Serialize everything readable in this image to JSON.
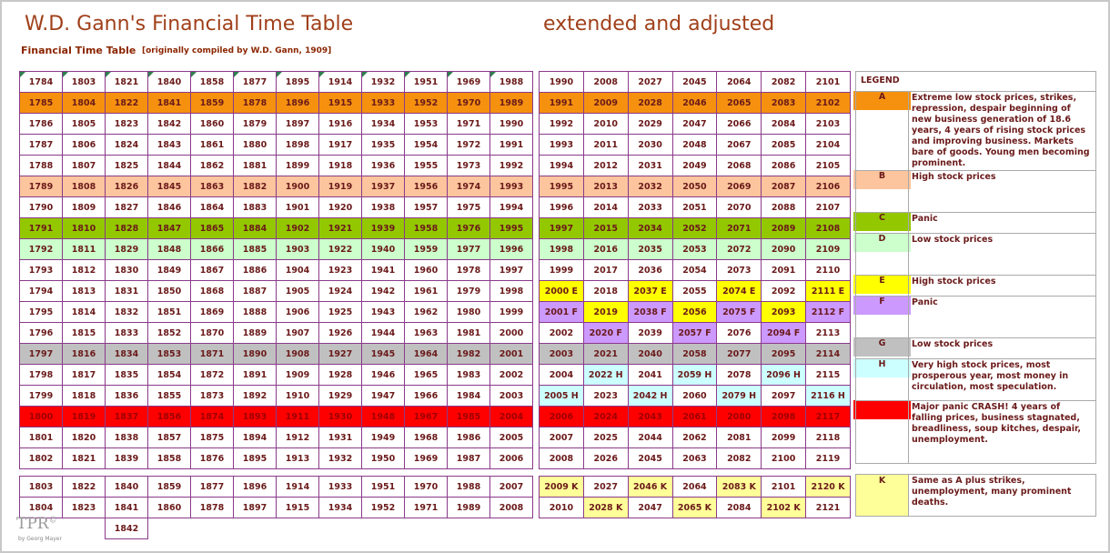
{
  "title": "W.D. Gann's Financial Time Table",
  "title_ext": "extended and adjusted",
  "subtitle": "Financial Time Table",
  "subtitle_note": "[originally compiled by W.D. Gann, 1909]",
  "colors": {
    "A": "#f5910f",
    "B": "#fcc59d",
    "C": "#93c800",
    "D": "#ccffcc",
    "E": "#ffff00",
    "F": "#cc99ff",
    "G": "#c0c0c0",
    "H": "#ccffff",
    "R": "#ff0000",
    "K": "#ffff99"
  },
  "left_table": {
    "rows": [
      {
        "cls": "",
        "cells": [
          "1784",
          "1803",
          "1821",
          "1840",
          "1858",
          "1877",
          "1895",
          "1914",
          "1932",
          "1951",
          "1969",
          "1988"
        ]
      },
      {
        "cls": "A",
        "cells": [
          "1785",
          "1804",
          "1822",
          "1841",
          "1859",
          "1878",
          "1896",
          "1915",
          "1933",
          "1952",
          "1970",
          "1989"
        ]
      },
      {
        "cls": "",
        "cells": [
          "1786",
          "1805",
          "1823",
          "1842",
          "1860",
          "1879",
          "1897",
          "1916",
          "1934",
          "1953",
          "1971",
          "1990"
        ]
      },
      {
        "cls": "",
        "cells": [
          "1787",
          "1806",
          "1824",
          "1843",
          "1861",
          "1880",
          "1898",
          "1917",
          "1935",
          "1954",
          "1972",
          "1991"
        ]
      },
      {
        "cls": "",
        "cells": [
          "1788",
          "1807",
          "1825",
          "1844",
          "1862",
          "1881",
          "1899",
          "1918",
          "1936",
          "1955",
          "1973",
          "1992"
        ]
      },
      {
        "cls": "B",
        "cells": [
          "1789",
          "1808",
          "1826",
          "1845",
          "1863",
          "1882",
          "1900",
          "1919",
          "1937",
          "1956",
          "1974",
          "1993"
        ]
      },
      {
        "cls": "",
        "cells": [
          "1790",
          "1809",
          "1827",
          "1846",
          "1864",
          "1883",
          "1901",
          "1920",
          "1938",
          "1957",
          "1975",
          "1994"
        ]
      },
      {
        "cls": "C",
        "cells": [
          "1791",
          "1810",
          "1828",
          "1847",
          "1865",
          "1884",
          "1902",
          "1921",
          "1939",
          "1958",
          "1976",
          "1995"
        ]
      },
      {
        "cls": "D",
        "cells": [
          "1792",
          "1811",
          "1829",
          "1848",
          "1866",
          "1885",
          "1903",
          "1922",
          "1940",
          "1959",
          "1977",
          "1996"
        ]
      },
      {
        "cls": "",
        "cells": [
          "1793",
          "1812",
          "1830",
          "1849",
          "1867",
          "1886",
          "1904",
          "1923",
          "1941",
          "1960",
          "1978",
          "1997"
        ]
      },
      {
        "cls": "",
        "cells": [
          "1794",
          "1813",
          "1831",
          "1850",
          "1868",
          "1887",
          "1905",
          "1924",
          "1942",
          "1961",
          "1979",
          "1998"
        ]
      },
      {
        "cls": "",
        "cells": [
          "1795",
          "1814",
          "1832",
          "1851",
          "1869",
          "1888",
          "1906",
          "1925",
          "1943",
          "1962",
          "1980",
          "1999"
        ]
      },
      {
        "cls": "",
        "cells": [
          "1796",
          "1815",
          "1833",
          "1852",
          "1870",
          "1889",
          "1907",
          "1926",
          "1944",
          "1963",
          "1981",
          "2000"
        ]
      },
      {
        "cls": "G",
        "cells": [
          "1797",
          "1816",
          "1834",
          "1853",
          "1871",
          "1890",
          "1908",
          "1927",
          "1945",
          "1964",
          "1982",
          "2001"
        ]
      },
      {
        "cls": "",
        "cells": [
          "1798",
          "1817",
          "1835",
          "1854",
          "1872",
          "1891",
          "1909",
          "1928",
          "1946",
          "1965",
          "1983",
          "2002"
        ]
      },
      {
        "cls": "",
        "cells": [
          "1799",
          "1818",
          "1836",
          "1855",
          "1873",
          "1892",
          "1910",
          "1929",
          "1947",
          "1966",
          "1984",
          "2003"
        ]
      },
      {
        "cls": "R",
        "cells": [
          "1800",
          "1819",
          "1837",
          "1856",
          "1874",
          "1893",
          "1911",
          "1930",
          "1948",
          "1967",
          "1985",
          "2004"
        ]
      },
      {
        "cls": "",
        "cells": [
          "1801",
          "1820",
          "1838",
          "1857",
          "1875",
          "1894",
          "1912",
          "1931",
          "1949",
          "1968",
          "1986",
          "2005"
        ]
      },
      {
        "cls": "",
        "cells": [
          "1802",
          "1821",
          "1839",
          "1858",
          "1876",
          "1895",
          "1913",
          "1932",
          "1950",
          "1969",
          "1987",
          "2006"
        ]
      }
    ],
    "extra_rows": [
      {
        "cls": "",
        "cells": [
          "1803",
          "1822",
          "1840",
          "1859",
          "1877",
          "1896",
          "1914",
          "1933",
          "1951",
          "1970",
          "1988",
          "2007"
        ]
      },
      {
        "cls": "",
        "cells": [
          "1804",
          "1823",
          "1841",
          "1860",
          "1878",
          "1897",
          "1915",
          "1934",
          "1952",
          "1971",
          "1989",
          "2008"
        ]
      },
      {
        "cls": "",
        "cells": [
          "",
          "",
          "1842",
          "",
          "",
          "",
          "",
          "",
          "",
          "",
          "",
          ""
        ]
      }
    ]
  },
  "right_table": {
    "rows": [
      [
        {
          "t": "1990"
        },
        {
          "t": "2008"
        },
        {
          "t": "2027"
        },
        {
          "t": "2045"
        },
        {
          "t": "2064"
        },
        {
          "t": "2082"
        },
        {
          "t": "2101"
        }
      ],
      [
        {
          "t": "1991",
          "c": "A"
        },
        {
          "t": "2009",
          "c": "A"
        },
        {
          "t": "2028",
          "c": "A"
        },
        {
          "t": "2046",
          "c": "A"
        },
        {
          "t": "2065",
          "c": "A"
        },
        {
          "t": "2083",
          "c": "A"
        },
        {
          "t": "2102",
          "c": "A"
        }
      ],
      [
        {
          "t": "1992"
        },
        {
          "t": "2010"
        },
        {
          "t": "2029"
        },
        {
          "t": "2047"
        },
        {
          "t": "2066"
        },
        {
          "t": "2084"
        },
        {
          "t": "2103"
        }
      ],
      [
        {
          "t": "1993"
        },
        {
          "t": "2011"
        },
        {
          "t": "2030"
        },
        {
          "t": "2048"
        },
        {
          "t": "2067"
        },
        {
          "t": "2085"
        },
        {
          "t": "2104"
        }
      ],
      [
        {
          "t": "1994"
        },
        {
          "t": "2012"
        },
        {
          "t": "2031"
        },
        {
          "t": "2049"
        },
        {
          "t": "2068"
        },
        {
          "t": "2086"
        },
        {
          "t": "2105"
        }
      ],
      [
        {
          "t": "1995",
          "c": "B"
        },
        {
          "t": "2013",
          "c": "B"
        },
        {
          "t": "2032",
          "c": "B"
        },
        {
          "t": "2050",
          "c": "B"
        },
        {
          "t": "2069",
          "c": "B"
        },
        {
          "t": "2087",
          "c": "B"
        },
        {
          "t": "2106",
          "c": "B"
        }
      ],
      [
        {
          "t": "1996"
        },
        {
          "t": "2014"
        },
        {
          "t": "2033"
        },
        {
          "t": "2051"
        },
        {
          "t": "2070"
        },
        {
          "t": "2088"
        },
        {
          "t": "2107"
        }
      ],
      [
        {
          "t": "1997",
          "c": "C"
        },
        {
          "t": "2015",
          "c": "C"
        },
        {
          "t": "2034",
          "c": "C"
        },
        {
          "t": "2052",
          "c": "C"
        },
        {
          "t": "2071",
          "c": "C"
        },
        {
          "t": "2089",
          "c": "C"
        },
        {
          "t": "2108",
          "c": "C"
        }
      ],
      [
        {
          "t": "1998",
          "c": "D"
        },
        {
          "t": "2016",
          "c": "D"
        },
        {
          "t": "2035",
          "c": "D"
        },
        {
          "t": "2053",
          "c": "D"
        },
        {
          "t": "2072",
          "c": "D"
        },
        {
          "t": "2090",
          "c": "D"
        },
        {
          "t": "2109",
          "c": "D"
        }
      ],
      [
        {
          "t": "1999"
        },
        {
          "t": "2017"
        },
        {
          "t": "2036"
        },
        {
          "t": "2054"
        },
        {
          "t": "2073"
        },
        {
          "t": "2091"
        },
        {
          "t": "2110"
        }
      ],
      [
        {
          "t": "2000 E",
          "c": "E"
        },
        {
          "t": "2018"
        },
        {
          "t": "2037 E",
          "c": "E"
        },
        {
          "t": "2055"
        },
        {
          "t": "2074 E",
          "c": "E"
        },
        {
          "t": "2092"
        },
        {
          "t": "2111 E",
          "c": "E"
        }
      ],
      [
        {
          "t": "2001 F",
          "c": "F"
        },
        {
          "t": "2019",
          "c": "E"
        },
        {
          "t": "2038 F",
          "c": "F"
        },
        {
          "t": "2056",
          "c": "E"
        },
        {
          "t": "2075 F",
          "c": "F"
        },
        {
          "t": "2093",
          "c": "E"
        },
        {
          "t": "2112 F",
          "c": "F"
        }
      ],
      [
        {
          "t": "2002"
        },
        {
          "t": "2020 F",
          "c": "F"
        },
        {
          "t": "2039"
        },
        {
          "t": "2057 F",
          "c": "F"
        },
        {
          "t": "2076"
        },
        {
          "t": "2094 F",
          "c": "F"
        },
        {
          "t": "2113"
        }
      ],
      [
        {
          "t": "2003",
          "c": "G"
        },
        {
          "t": "2021",
          "c": "G"
        },
        {
          "t": "2040",
          "c": "G"
        },
        {
          "t": "2058",
          "c": "G"
        },
        {
          "t": "2077",
          "c": "G"
        },
        {
          "t": "2095",
          "c": "G"
        },
        {
          "t": "2114",
          "c": "G"
        }
      ],
      [
        {
          "t": "2004"
        },
        {
          "t": "2022 H",
          "c": "H"
        },
        {
          "t": "2041"
        },
        {
          "t": "2059 H",
          "c": "H"
        },
        {
          "t": "2078"
        },
        {
          "t": "2096 H",
          "c": "H"
        },
        {
          "t": "2115"
        }
      ],
      [
        {
          "t": "2005 H",
          "c": "H"
        },
        {
          "t": "2023"
        },
        {
          "t": "2042 H",
          "c": "H"
        },
        {
          "t": "2060"
        },
        {
          "t": "2079 H",
          "c": "H"
        },
        {
          "t": "2097"
        },
        {
          "t": "2116 H",
          "c": "H"
        }
      ],
      [
        {
          "t": "2006",
          "c": "R"
        },
        {
          "t": "2024",
          "c": "R"
        },
        {
          "t": "2043",
          "c": "R"
        },
        {
          "t": "2061",
          "c": "R"
        },
        {
          "t": "2080",
          "c": "R"
        },
        {
          "t": "2098",
          "c": "R"
        },
        {
          "t": "2117",
          "c": "R"
        }
      ],
      [
        {
          "t": "2007"
        },
        {
          "t": "2025"
        },
        {
          "t": "2044"
        },
        {
          "t": "2062"
        },
        {
          "t": "2081"
        },
        {
          "t": "2099"
        },
        {
          "t": "2118"
        }
      ],
      [
        {
          "t": "2008"
        },
        {
          "t": "2026"
        },
        {
          "t": "2045"
        },
        {
          "t": "2063"
        },
        {
          "t": "2082"
        },
        {
          "t": "2100"
        },
        {
          "t": "2119"
        }
      ]
    ],
    "extra_rows": [
      [
        {
          "t": "2009 K",
          "c": "K"
        },
        {
          "t": "2027"
        },
        {
          "t": "2046 K",
          "c": "K"
        },
        {
          "t": "2064"
        },
        {
          "t": "2083 K",
          "c": "K"
        },
        {
          "t": "2101"
        },
        {
          "t": "2120 K",
          "c": "K"
        }
      ],
      [
        {
          "t": "2010"
        },
        {
          "t": "2028 K",
          "c": "K"
        },
        {
          "t": "2047"
        },
        {
          "t": "2065 K",
          "c": "K"
        },
        {
          "t": "2084"
        },
        {
          "t": "2102 K",
          "c": "K"
        },
        {
          "t": "2121"
        }
      ]
    ]
  },
  "legend": {
    "header": "LEGEND",
    "items": [
      {
        "key": "A",
        "cls": "A",
        "text": "Extreme low stock prices, strikes, repression, despair beginning of new business generation of 18.6 years, 4 years of rising stock prices and improving business. Markets bare of goods. Young men becoming prominent."
      },
      {
        "key": "B",
        "cls": "B",
        "text": "High stock prices"
      },
      {
        "key": "C",
        "cls": "C",
        "text": "Panic"
      },
      {
        "key": "D",
        "cls": "D",
        "text": "Low stock prices"
      },
      {
        "key": "E",
        "cls": "E",
        "text": "High stock prices"
      },
      {
        "key": "F",
        "cls": "F",
        "text": "Panic"
      },
      {
        "key": "G",
        "cls": "G",
        "text": "Low stock prices"
      },
      {
        "key": "H",
        "cls": "H",
        "text": "Very high stock prices, most prosperous year, most money in circulation, most speculation."
      },
      {
        "key": "",
        "cls": "R",
        "text": "Major panic CRASH! 4 years of falling prices, business stagnated, breadliness, soup kitches, despair, unemployment."
      }
    ],
    "k_item": {
      "key": "K",
      "cls": "K",
      "text": "Same as A plus strikes, unemployment, many prominent deaths."
    }
  },
  "logo": "TPR",
  "logo_mark": "©",
  "logo_sub": "by Georg Mayer"
}
